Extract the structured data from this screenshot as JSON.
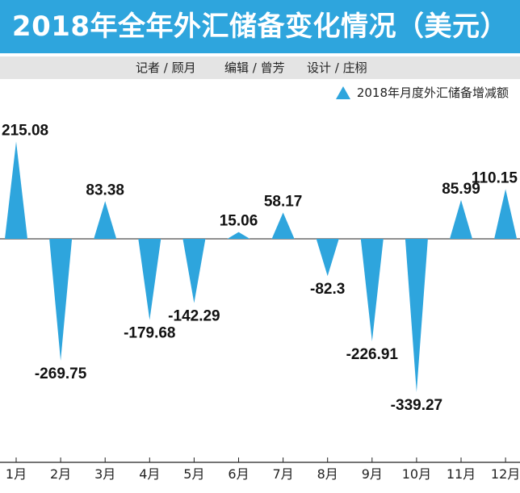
{
  "title": "2018年全年外汇储备变化情况（美元）",
  "credits": {
    "reporter": "记者 / 顾月",
    "editor": "编辑 / 曾芳",
    "designer": "设计 / 庄栩"
  },
  "colors": {
    "header": "#2ea5dd",
    "credits_bg": "#e4e4e4",
    "series": "#2ea5dd",
    "axis": "#222222"
  },
  "chart_data": {
    "type": "bar",
    "categories": [
      "1月",
      "2月",
      "3月",
      "4月",
      "5月",
      "6月",
      "7月",
      "8月",
      "9月",
      "10月",
      "11月",
      "12月"
    ],
    "series": [
      {
        "name": "2018年月度外汇储备增减额",
        "values": [
          215.08,
          -269.75,
          83.38,
          -179.68,
          -142.29,
          15.06,
          58.17,
          -82.3,
          -226.91,
          -339.27,
          85.99,
          110.15
        ]
      }
    ],
    "value_labels": [
      "215.08",
      "-269.75",
      "83.38",
      "-179.68",
      "-142.29",
      "15.06",
      "58.17",
      "-82.3",
      "-226.91",
      "-339.27",
      "85.99",
      "110.15"
    ],
    "mark_shape": "triangle",
    "legend_position": "top-right",
    "grid": false
  }
}
